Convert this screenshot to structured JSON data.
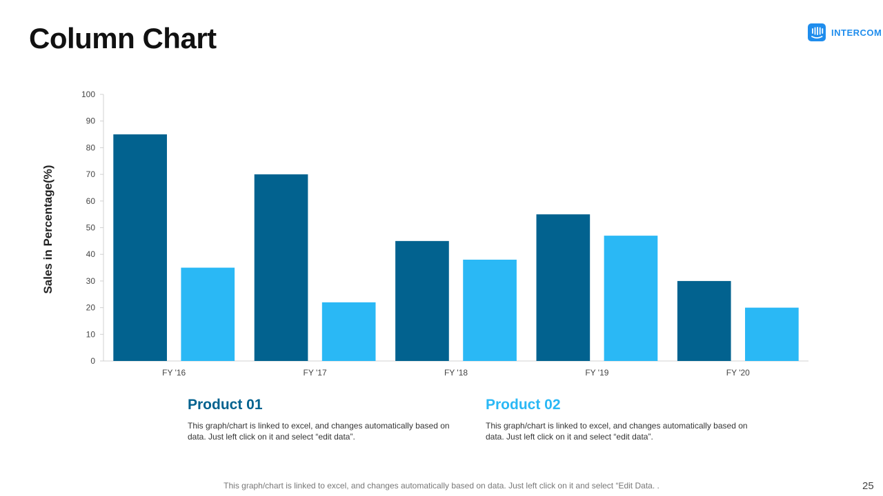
{
  "slide": {
    "title": "Column Chart",
    "logo_text": "INTERCOM",
    "page_number": "25",
    "footer_note": "This graph/chart is linked to excel, and changes automatically based on data. Just left click on it and select “Edit Data. ."
  },
  "legend": {
    "product1": {
      "title": "Product 01",
      "description": "This graph/chart is linked to excel, and changes automatically based on data. Just left click on it and select “edit data”."
    },
    "product2": {
      "title": "Product 02",
      "description": "This graph/chart is linked to excel, and changes automatically based on data. Just left click on it and select “edit data”."
    }
  },
  "colors": {
    "product1": "#02628f",
    "product2": "#2ab8f5",
    "logo": "#1f8ded",
    "axis": "#d0d0d0"
  },
  "chart_data": {
    "type": "bar",
    "title": "",
    "xlabel": "",
    "ylabel": "Sales in Percentage(%)",
    "ylim": [
      0,
      100
    ],
    "yticks": [
      0,
      10,
      20,
      30,
      40,
      50,
      60,
      70,
      80,
      90,
      100
    ],
    "grid": false,
    "categories": [
      "FY '16",
      "FY '17",
      "FY '18",
      "FY '19",
      "FY '20"
    ],
    "series": [
      {
        "name": "Product 01",
        "values": [
          85,
          70,
          45,
          55,
          30
        ]
      },
      {
        "name": "Product 02",
        "values": [
          35,
          22,
          38,
          47,
          20
        ]
      }
    ]
  }
}
